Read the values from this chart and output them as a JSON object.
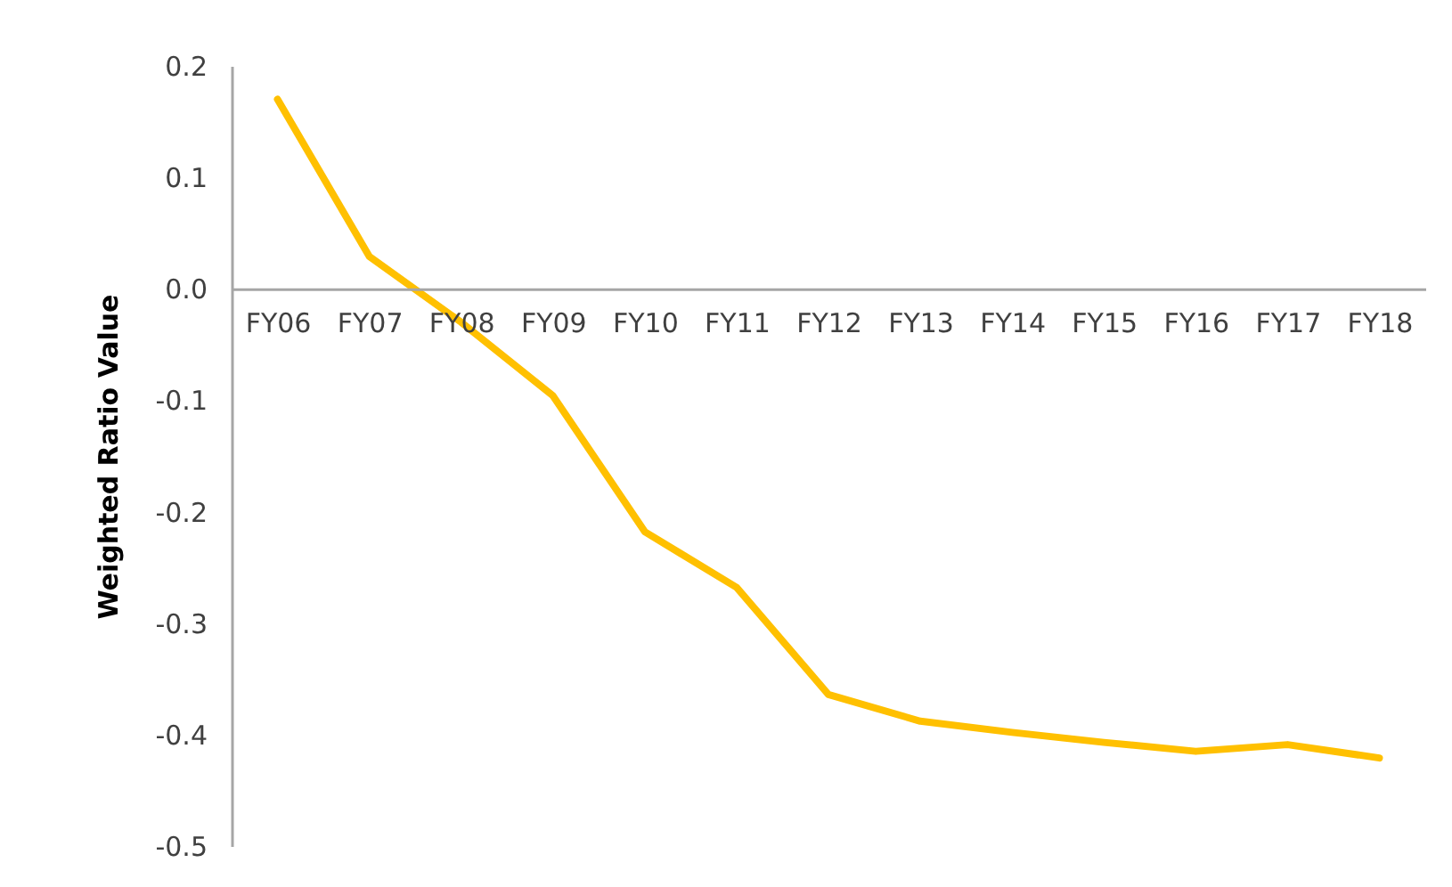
{
  "chart_data": {
    "type": "line",
    "ylabel": "Weighted Ratio Value",
    "categories": [
      "FY06",
      "FY07",
      "FY08",
      "FY09",
      "FY10",
      "FY11",
      "FY12",
      "FY13",
      "FY14",
      "FY15",
      "FY16",
      "FY17",
      "FY18"
    ],
    "series": [
      {
        "color": "#ffc000",
        "values": [
          0.17,
          0.029,
          -0.03,
          -0.096,
          -0.218,
          -0.268,
          -0.364,
          -0.388,
          -0.398,
          -0.407,
          -0.415,
          -0.409,
          -0.421
        ]
      }
    ],
    "ylim": [
      -0.5,
      0.2
    ],
    "yticks": [
      {
        "value": 0.2,
        "label": "0.2"
      },
      {
        "value": 0.1,
        "label": "0.1"
      },
      {
        "value": 0,
        "label": "0.0"
      },
      {
        "value": -0.1,
        "label": "-0.1"
      },
      {
        "value": -0.2,
        "label": "-0.2"
      },
      {
        "value": -0.3,
        "label": "-0.3"
      },
      {
        "value": -0.4,
        "label": "-0.4"
      },
      {
        "value": -0.5,
        "label": "-0.5"
      }
    ],
    "grid": false,
    "marker": "none",
    "line_style": "solid"
  }
}
